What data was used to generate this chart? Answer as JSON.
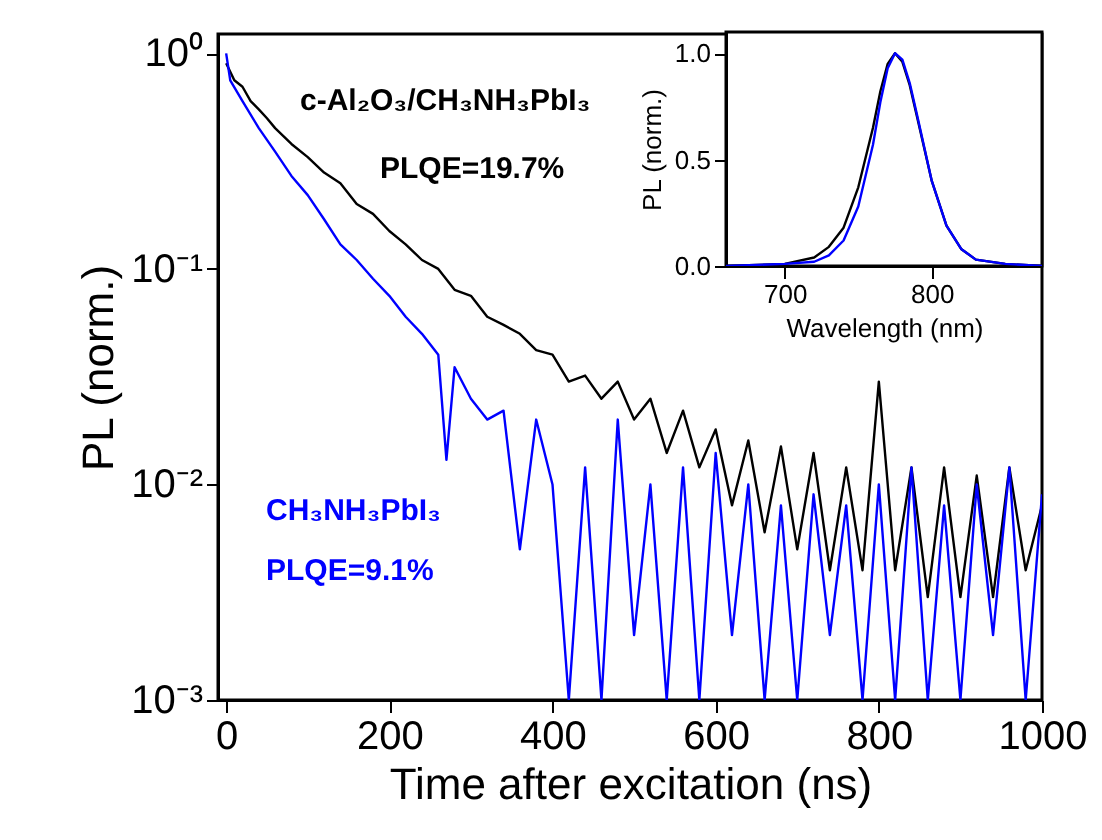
{
  "chart_data": [
    {
      "type": "line",
      "xlabel": "Time after excitation (ns)",
      "ylabel": "PL (norm.)",
      "log": "y",
      "grid": false,
      "xlim": [
        -10,
        1000
      ],
      "xticks": [
        0,
        200,
        400,
        600,
        800,
        1000
      ],
      "ylim": [
        0.001,
        1.23
      ],
      "yticks": [
        {
          "value": 0.001,
          "label": "10⁻³"
        },
        {
          "value": 0.01,
          "label": "10⁻²"
        },
        {
          "value": 0.1,
          "label": "10⁻¹"
        },
        {
          "value": 1,
          "label": "10⁰"
        }
      ],
      "annotations": [
        "PLQE=19.7%",
        "PLQE=9.1%"
      ],
      "series": [
        {
          "name": "c-Al₂O₃/CH₃NH₃PbI₃",
          "color": "#000000",
          "x": [
            0,
            10,
            20,
            30,
            40,
            50,
            60,
            80,
            100,
            120,
            140,
            160,
            180,
            200,
            220,
            240,
            260,
            280,
            300,
            320,
            340,
            360,
            380,
            400,
            420,
            440,
            460,
            480,
            500,
            520,
            540,
            560,
            580,
            600,
            620,
            640,
            660,
            680,
            700,
            720,
            740,
            760,
            780,
            800,
            820,
            840,
            860,
            880,
            900,
            920,
            940,
            960,
            980,
            1000
          ],
          "values": [
            0.9,
            0.75,
            0.7,
            0.6,
            0.55,
            0.5,
            0.45,
            0.38,
            0.33,
            0.28,
            0.25,
            0.2,
            0.18,
            0.15,
            0.13,
            0.11,
            0.1,
            0.08,
            0.075,
            0.06,
            0.055,
            0.05,
            0.042,
            0.04,
            0.03,
            0.032,
            0.025,
            0.03,
            0.02,
            0.025,
            0.014,
            0.022,
            0.012,
            0.018,
            0.008,
            0.016,
            0.006,
            0.015,
            0.005,
            0.014,
            0.004,
            0.012,
            0.004,
            0.03,
            0.004,
            0.012,
            0.003,
            0.012,
            0.003,
            0.011,
            0.003,
            0.012,
            0.004,
            0.008
          ]
        },
        {
          "name": "CH₃NH₃PbI₃",
          "color": "#0000ff",
          "x": [
            0,
            5,
            20,
            40,
            60,
            80,
            100,
            120,
            140,
            160,
            180,
            200,
            220,
            240,
            260,
            270,
            280,
            300,
            320,
            340,
            360,
            380,
            400,
            420,
            440,
            460,
            480,
            500,
            520,
            540,
            560,
            580,
            600,
            620,
            640,
            660,
            680,
            700,
            720,
            740,
            760,
            780,
            800,
            820,
            840,
            860,
            880,
            900,
            920,
            940,
            960,
            980,
            1000
          ],
          "values": [
            1.0,
            0.75,
            0.6,
            0.45,
            0.35,
            0.27,
            0.22,
            0.17,
            0.13,
            0.11,
            0.09,
            0.075,
            0.06,
            0.05,
            0.04,
            0.013,
            0.035,
            0.025,
            0.02,
            0.022,
            0.005,
            0.02,
            0.01,
            0.001,
            0.012,
            0.001,
            0.02,
            0.002,
            0.01,
            0.001,
            0.012,
            0.001,
            0.014,
            0.002,
            0.01,
            0.001,
            0.008,
            0.001,
            0.009,
            0.002,
            0.008,
            0.001,
            0.01,
            0.001,
            0.012,
            0.001,
            0.008,
            0.001,
            0.01,
            0.002,
            0.012,
            0.001,
            0.009
          ]
        }
      ]
    },
    {
      "type": "line",
      "xlabel": "Wavelength (nm)",
      "ylabel": "PL (norm.)",
      "grid": false,
      "xlim": [
        660,
        875
      ],
      "xticks": [
        700,
        800
      ],
      "ylim": [
        0,
        1.1
      ],
      "yticks": [
        {
          "value": 0,
          "label": "0.0"
        },
        {
          "value": 0.5,
          "label": "0.5"
        },
        {
          "value": 1,
          "label": "1.0"
        }
      ],
      "series": [
        {
          "color": "#000000",
          "x": [
            660,
            700,
            720,
            730,
            740,
            750,
            760,
            765,
            770,
            775,
            780,
            785,
            790,
            800,
            810,
            820,
            830,
            850,
            875
          ],
          "values": [
            0,
            0.01,
            0.04,
            0.09,
            0.18,
            0.37,
            0.65,
            0.82,
            0.95,
            1.0,
            0.96,
            0.85,
            0.7,
            0.4,
            0.19,
            0.08,
            0.03,
            0.01,
            0
          ]
        },
        {
          "color": "#0000ff",
          "x": [
            660,
            700,
            720,
            730,
            740,
            750,
            760,
            765,
            770,
            775,
            780,
            785,
            790,
            800,
            810,
            820,
            830,
            850,
            875
          ],
          "values": [
            0,
            0.01,
            0.02,
            0.05,
            0.12,
            0.28,
            0.57,
            0.77,
            0.93,
            1.0,
            0.97,
            0.86,
            0.71,
            0.4,
            0.19,
            0.08,
            0.03,
            0.01,
            0
          ]
        }
      ]
    }
  ]
}
